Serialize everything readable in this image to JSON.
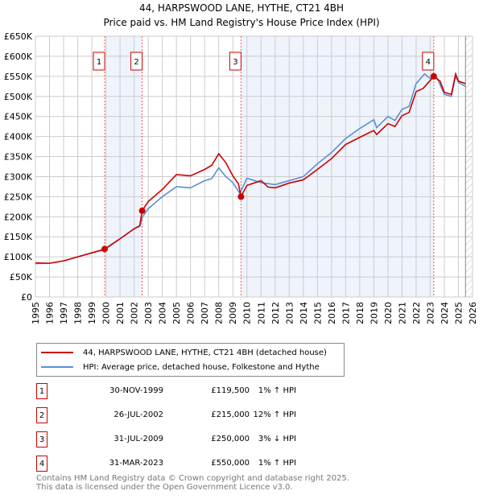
{
  "chart_data": {
    "type": "line",
    "title": "44, HARPSWOOD LANE, HYTHE, CT21 4BH",
    "subtitle": "Price paid vs. HM Land Registry's House Price Index (HPI)",
    "xlim": [
      1995,
      2026
    ],
    "ylim": [
      0,
      650000
    ],
    "y_ticks": [
      "£0",
      "£50K",
      "£100K",
      "£150K",
      "£200K",
      "£250K",
      "£300K",
      "£350K",
      "£400K",
      "£450K",
      "£500K",
      "£550K",
      "£600K",
      "£650K"
    ],
    "x_ticks": [
      "1995",
      "1996",
      "1997",
      "1998",
      "1999",
      "2000",
      "2001",
      "2002",
      "2003",
      "2004",
      "2005",
      "2006",
      "2007",
      "2008",
      "2009",
      "2010",
      "2011",
      "2012",
      "2013",
      "2014",
      "2015",
      "2016",
      "2017",
      "2018",
      "2019",
      "2020",
      "2021",
      "2022",
      "2023",
      "2024",
      "2025",
      "2026"
    ],
    "grid": true,
    "series": [
      {
        "name": "44, HARPSWOOD LANE, HYTHE, CT21 4BH (detached house)",
        "color": "#cc0000",
        "x": [
          1995,
          1996,
          1997,
          1998,
          1999,
          1999.91,
          2001,
          2002,
          2002.4,
          2002.57,
          2003,
          2004,
          2005,
          2006,
          2007,
          2007.5,
          2008,
          2008.5,
          2009,
          2009.4,
          2009.58,
          2010,
          2011,
          2011.5,
          2012,
          2013,
          2014,
          2015,
          2016,
          2017,
          2018,
          2019,
          2019.2,
          2020,
          2020.5,
          2021,
          2021.5,
          2022,
          2022.5,
          2023.25,
          2023.7,
          2024,
          2024.5,
          2024.8,
          2025,
          2025.5
        ],
        "y": [
          85000,
          84000,
          90000,
          100000,
          110000,
          119500,
          145000,
          170000,
          178000,
          215000,
          238000,
          268000,
          305000,
          302000,
          318000,
          328000,
          357000,
          335000,
          302000,
          282000,
          250000,
          278000,
          290000,
          274000,
          272000,
          284000,
          292000,
          318000,
          345000,
          380000,
          398000,
          415000,
          405000,
          432000,
          425000,
          452000,
          460000,
          512000,
          520000,
          550000,
          538000,
          510000,
          505000,
          556000,
          538000,
          532000
        ]
      },
      {
        "name": "HPI: Average price, detached house, Folkestone and Hythe",
        "color": "#5b8fd4",
        "x": [
          1995,
          1996,
          1997,
          1998,
          1999,
          1999.91,
          2001,
          2002,
          2002.4,
          2002.6,
          2003,
          2004,
          2005,
          2006,
          2007,
          2007.5,
          2008,
          2008.5,
          2009,
          2009.5,
          2010,
          2011,
          2012,
          2013,
          2014,
          2015,
          2016,
          2017,
          2018,
          2019,
          2019.2,
          2020,
          2020.5,
          2021,
          2021.5,
          2022,
          2022.6,
          2023,
          2023.5,
          2024,
          2024.5,
          2024.8,
          2025,
          2025.5
        ],
        "y": [
          83000,
          84000,
          90000,
          100000,
          110000,
          118000,
          145000,
          170000,
          176000,
          200000,
          220000,
          250000,
          275000,
          272000,
          290000,
          295000,
          322000,
          300000,
          285000,
          258000,
          296000,
          285000,
          280000,
          290000,
          300000,
          332000,
          360000,
          395000,
          420000,
          442000,
          422000,
          450000,
          440000,
          468000,
          475000,
          532000,
          556000,
          545000,
          545000,
          505000,
          500000,
          550000,
          535000,
          525000
        ]
      }
    ],
    "sales": [
      {
        "label": "1",
        "date": "30-NOV-1999",
        "x": 1999.91,
        "price": "£119,500",
        "value": 119500,
        "hpi": "1% ↑ HPI"
      },
      {
        "label": "2",
        "date": "26-JUL-2002",
        "x": 2002.57,
        "price": "£215,000",
        "value": 215000,
        "hpi": "12% ↑ HPI"
      },
      {
        "label": "3",
        "date": "31-JUL-2009",
        "x": 2009.58,
        "price": "£250,000",
        "value": 250000,
        "hpi": "3% ↓ HPI"
      },
      {
        "label": "4",
        "date": "31-MAR-2023",
        "x": 2023.25,
        "price": "£550,000",
        "value": 550000,
        "hpi": "1% ↑ HPI"
      }
    ],
    "shaded_ranges": [
      [
        2000,
        2002.57
      ],
      [
        2009.58,
        2023.25
      ]
    ],
    "forecast_start": 2025.5,
    "legend_position": "below"
  },
  "footer": {
    "line1": "Contains HM Land Registry data © Crown copyright and database right 2025.",
    "line2": "This data is licensed under the Open Government Licence v3.0."
  }
}
